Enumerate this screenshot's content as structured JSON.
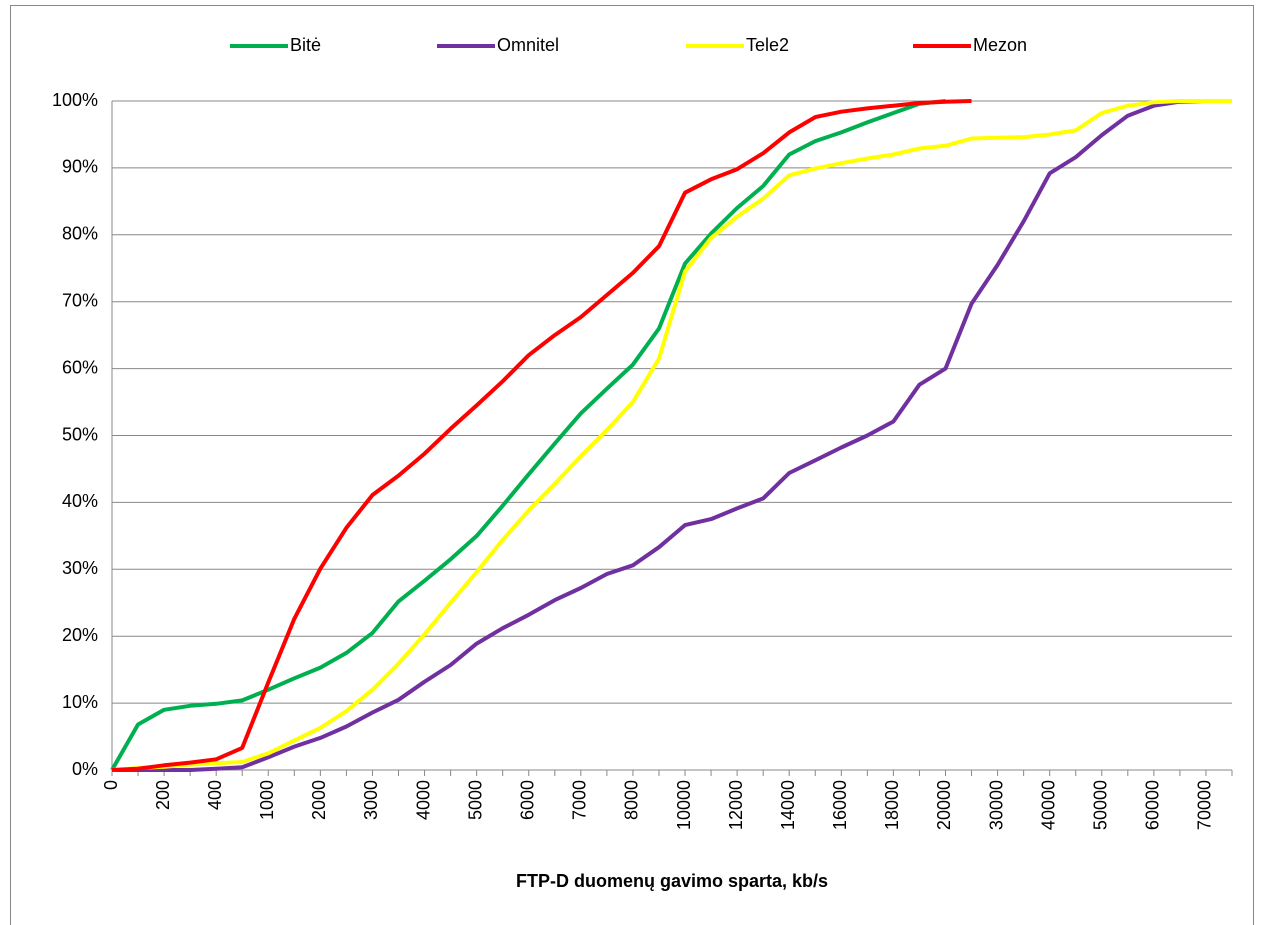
{
  "chart_data": {
    "type": "line",
    "x_label": "FTP-D duomenų gavimo sparta, kb/s",
    "categories": [
      "0",
      null,
      "200",
      null,
      "400",
      null,
      "1000",
      null,
      "2000",
      null,
      "3000",
      null,
      "4000",
      null,
      "5000",
      null,
      "6000",
      null,
      "7000",
      null,
      "8000",
      null,
      "10000",
      null,
      "12000",
      null,
      "14000",
      null,
      "16000",
      null,
      "18000",
      null,
      "20000",
      null,
      "30000",
      null,
      "40000",
      null,
      "50000",
      null,
      "60000",
      null,
      "70000",
      null
    ],
    "series": [
      {
        "name": "Bitė",
        "color": "#00b050",
        "values": [
          0,
          6.8,
          9,
          9.6,
          9.9,
          10.4,
          12,
          13.7,
          15.3,
          17.5,
          20.5,
          25.2,
          28.3,
          31.5,
          35,
          39.5,
          44.2,
          48.8,
          53.3,
          57,
          60.6,
          66,
          75.7,
          80.2,
          84,
          87.3,
          92,
          94,
          95.3,
          96.8,
          98.2,
          99.6,
          100,
          null,
          null,
          null,
          null,
          null,
          null,
          null,
          null,
          null,
          null,
          null
        ]
      },
      {
        "name": "Omnitel",
        "color": "#7030a0",
        "values": [
          0,
          0,
          0,
          0,
          0.2,
          0.4,
          1.9,
          3.5,
          4.8,
          6.5,
          8.6,
          10.5,
          13.2,
          15.7,
          18.9,
          21.2,
          23.2,
          25.4,
          27.2,
          29.3,
          30.6,
          33.3,
          36.6,
          37.5,
          39.1,
          40.6,
          44.4,
          46.3,
          48.2,
          50,
          52.1,
          57.6,
          60,
          69.7,
          75.5,
          82,
          89.2,
          91.6,
          94.9,
          97.8,
          99.3,
          99.9,
          100,
          100
        ]
      },
      {
        "name": "Tele2",
        "color": "#ffff00",
        "values": [
          0,
          0.3,
          0.5,
          0.8,
          1.0,
          1.2,
          2.5,
          4.4,
          6.3,
          8.8,
          12,
          15.9,
          20.3,
          25,
          29.6,
          34.4,
          38.8,
          42.8,
          46.9,
          50.8,
          55,
          61.5,
          74.5,
          79.5,
          82.7,
          85.4,
          88.9,
          89.9,
          90.7,
          91.4,
          92,
          92.9,
          93.3,
          94.4,
          94.5,
          94.6,
          95,
          95.6,
          98.2,
          99.3,
          99.8,
          100,
          100,
          100
        ]
      },
      {
        "name": "Mezon",
        "color": "#ff0000",
        "values": [
          0,
          0.2,
          0.7,
          1.1,
          1.6,
          3.3,
          13.1,
          22.6,
          30.1,
          36.2,
          41.1,
          44,
          47.3,
          51,
          54.5,
          58.1,
          62,
          65,
          67.7,
          71,
          74.3,
          78.3,
          86.3,
          88.3,
          89.8,
          92.2,
          95.3,
          97.6,
          98.4,
          98.9,
          99.3,
          99.7,
          99.9,
          100,
          null,
          null,
          null,
          null,
          null,
          null,
          null,
          null,
          null,
          null
        ]
      }
    ],
    "ylim": [
      0,
      100
    ],
    "yticks": [
      {
        "value": 0,
        "label": "0%"
      },
      {
        "value": 10,
        "label": "10%"
      },
      {
        "value": 20,
        "label": "20%"
      },
      {
        "value": 30,
        "label": "30%"
      },
      {
        "value": 40,
        "label": "40%"
      },
      {
        "value": 50,
        "label": "50%"
      },
      {
        "value": 60,
        "label": "60%"
      },
      {
        "value": 70,
        "label": "70%"
      },
      {
        "value": 80,
        "label": "80%"
      },
      {
        "value": 90,
        "label": "90%"
      },
      {
        "value": 100,
        "label": "100%"
      }
    ],
    "grid": true,
    "legend": "top"
  }
}
